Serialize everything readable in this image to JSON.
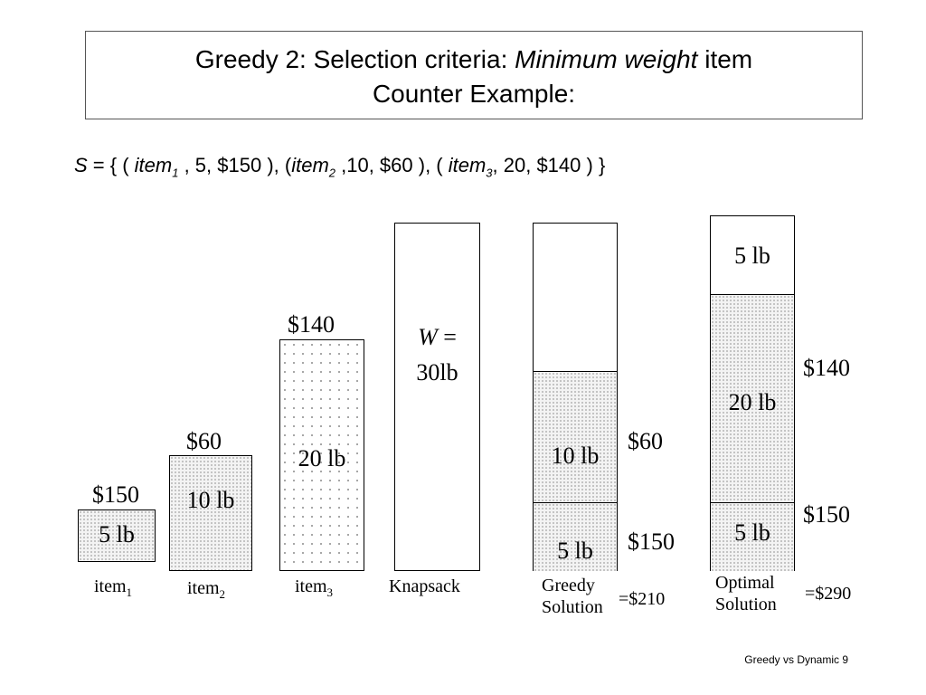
{
  "title": {
    "line1_prefix": "Greedy 2: Selection criteria: ",
    "line1_emphasis": "Minimum weight",
    "line1_suffix": " item",
    "line2": "Counter Example:"
  },
  "set_definition": {
    "symbol": "S",
    "p1": " = { ( ",
    "item1": "item",
    "item1_sub": "1",
    "p2": " , 5, $150 ), (",
    "item2": "item",
    "item2_sub": "2",
    "p3": " ,10, $60 ), ( ",
    "item3": "item",
    "item3_sub": "3",
    "p4": ", 20, $140 ) }"
  },
  "items": [
    {
      "value": "$150",
      "weight": "5 lb",
      "name": "item",
      "sub": "1"
    },
    {
      "value": "$60",
      "weight": "10 lb",
      "name": "item",
      "sub": "2"
    },
    {
      "value": "$140",
      "weight": "20 lb",
      "name": "item",
      "sub": "3"
    }
  ],
  "knapsack": {
    "w_symbol": "W",
    "w_eq": " =",
    "capacity": "30lb",
    "caption": "Knapsack"
  },
  "greedy": {
    "seg_10": "10 lb",
    "seg_5": "5 lb",
    "value_60": "$60",
    "value_150": "$150",
    "caption_line1": "Greedy",
    "caption_line2": "Solution",
    "total": "=$210"
  },
  "optimal": {
    "seg_top": "5 lb",
    "seg_mid": "20 lb",
    "seg_bot": "5 lb",
    "value_140": "$140",
    "value_150": "$150",
    "caption_line1": "Optimal",
    "caption_line2": "Solution",
    "total": "=$290"
  },
  "footer": "Greedy vs Dynamic 9"
}
